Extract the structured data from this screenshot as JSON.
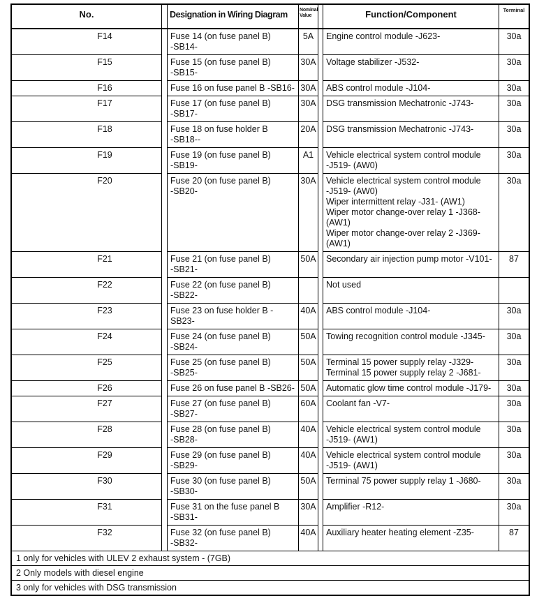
{
  "colors": {
    "border": "#000000",
    "text": "#141414",
    "background": "#ffffff"
  },
  "table": {
    "headers": {
      "no": "No.",
      "designation": "Designation in Wiring Diagram",
      "nominal": "Nominal\nValue",
      "function": "Function/Component",
      "terminal": "Terminal"
    },
    "rows": [
      {
        "no": "F14",
        "designation": "Fuse 14 (on fuse panel B)\n-SB14-",
        "nominal": "5A",
        "function": "Engine control module -J623-",
        "terminal": "30a"
      },
      {
        "no": "F15",
        "designation": "Fuse 15 (on fuse panel B)\n-SB15-",
        "nominal": "30A",
        "function": "Voltage stabilizer -J532-",
        "terminal": "30a"
      },
      {
        "no": "F16",
        "designation": "Fuse 16 on fuse panel B -SB16-",
        "nominal": "30A",
        "function": "ABS control module -J104-",
        "terminal": "30a"
      },
      {
        "no": "F17",
        "designation": "Fuse 17 (on fuse panel B)\n-SB17-",
        "nominal": "30A",
        "function": "DSG transmission Mechatronic -J743-",
        "terminal": "30a"
      },
      {
        "no": "F18",
        "designation": "Fuse 18 on fuse holder B\n-SB18--",
        "nominal": "20A",
        "function": "DSG transmission Mechatronic -J743-",
        "terminal": "30a"
      },
      {
        "no": "F19",
        "designation": "Fuse 19 (on fuse panel B)\n-SB19-",
        "nominal": "A1",
        "function": "Vehicle electrical system control module\n-J519- (AW0)",
        "terminal": "30a"
      },
      {
        "no": "F20",
        "designation": "Fuse 20 (on fuse panel B)\n-SB20-",
        "nominal": "30A",
        "function": "Vehicle electrical system control module\n-J519- (AW0)\nWiper intermittent relay -J31- (AW1)\nWiper motor change-over relay 1 -J368-\n(AW1)\nWiper motor change-over relay 2 -J369-\n(AW1)",
        "terminal": "30a"
      },
      {
        "no": "F21",
        "designation": "Fuse 21 (on fuse panel B)\n-SB21-",
        "nominal": "50A",
        "function": "Secondary air injection pump motor -V101-",
        "terminal": "87"
      },
      {
        "no": "F22",
        "designation": "Fuse 22 (on fuse panel B)\n-SB22-",
        "nominal": "",
        "function": "Not used",
        "terminal": ""
      },
      {
        "no": "F23",
        "designation": "Fuse 23 on fuse holder B -SB23-",
        "nominal": "40A",
        "function": "ABS control module -J104-",
        "terminal": "30a"
      },
      {
        "no": "F24",
        "designation": "Fuse 24 (on fuse panel B)\n-SB24-",
        "nominal": "50A",
        "function": "Towing recognition control module -J345-",
        "terminal": "30a"
      },
      {
        "no": "F25",
        "designation": "Fuse 25 (on fuse panel B)\n-SB25-",
        "nominal": "50A",
        "function": "Terminal 15 power supply relay -J329-\nTerminal 15 power supply relay 2 -J681-",
        "terminal": "30a"
      },
      {
        "no": "F26",
        "designation": "Fuse 26 on fuse panel B -SB26-",
        "nominal": "50A",
        "function": "Automatic glow time control module -J179-",
        "terminal": "30a"
      },
      {
        "no": "F27",
        "designation": "Fuse 27 (on fuse panel B)\n-SB27-",
        "nominal": "60A",
        "function": "Coolant fan -V7-",
        "terminal": "30a"
      },
      {
        "no": "F28",
        "designation": "Fuse 28 (on fuse panel B)\n-SB28-",
        "nominal": "40A",
        "function": "Vehicle electrical system control module\n-J519- (AW1)",
        "terminal": "30a"
      },
      {
        "no": "F29",
        "designation": "Fuse 29 (on fuse panel B)\n-SB29-",
        "nominal": "40A",
        "function": "Vehicle electrical system control module\n-J519- (AW1)",
        "terminal": "30a"
      },
      {
        "no": "F30",
        "designation": "Fuse 30 (on fuse panel B)\n-SB30-",
        "nominal": "50A",
        "function": "Terminal 75 power supply relay 1 -J680-",
        "terminal": "30a"
      },
      {
        "no": "F31",
        "designation": "Fuse 31 on the fuse panel B\n-SB31-",
        "nominal": "30A",
        "function": "Amplifier -R12-",
        "terminal": "30a"
      },
      {
        "no": "F32",
        "designation": "Fuse 32 (on fuse panel B)\n-SB32-",
        "nominal": "40A",
        "function": "Auxiliary heater heating element -Z35-",
        "terminal": "87"
      }
    ],
    "footnotes": [
      "1 only for vehicles with ULEV 2 exhaust system - (7GB)",
      "2 Only models with diesel engine",
      "3 only for vehicles with DSG transmission"
    ]
  }
}
